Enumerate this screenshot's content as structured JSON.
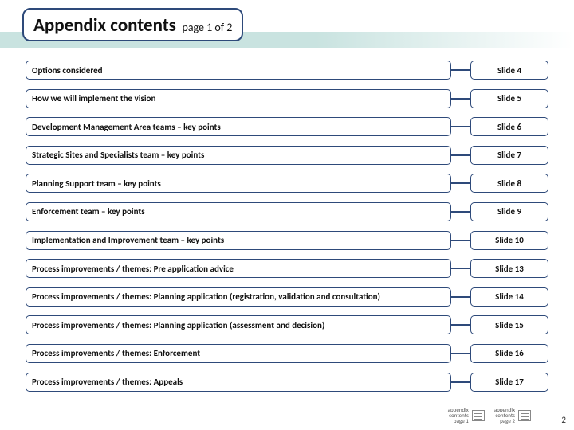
{
  "title": {
    "main": "Appendix contents",
    "sub": "page 1 of 2"
  },
  "rows": [
    {
      "label": "Options considered",
      "slide": "Slide 4"
    },
    {
      "label": "How we will implement the vision",
      "slide": "Slide 5"
    },
    {
      "label": "Development Management Area teams – key points",
      "slide": "Slide 6"
    },
    {
      "label": "Strategic Sites and Specialists team – key points",
      "slide": "Slide 7"
    },
    {
      "label": "Planning Support team – key points",
      "slide": "Slide 8"
    },
    {
      "label": "Enforcement team – key points",
      "slide": "Slide 9"
    },
    {
      "label": "Implementation and Improvement team – key points",
      "slide": "Slide 10"
    },
    {
      "label": "Process improvements / themes: Pre application advice",
      "slide": "Slide 13"
    },
    {
      "label": "Process improvements / themes: Planning application (registration, validation and consultation)",
      "slide": "Slide 14"
    },
    {
      "label": "Process improvements / themes: Planning application (assessment and decision)",
      "slide": "Slide 15"
    },
    {
      "label": "Process improvements / themes: Enforcement",
      "slide": "Slide 16"
    },
    {
      "label": "Process improvements / themes: Appeals",
      "slide": "Slide 17"
    }
  ],
  "footer": {
    "appendices": [
      {
        "line1": "appendix",
        "line2": "contents",
        "line3": "page 1"
      },
      {
        "line1": "appendix",
        "line2": "contents",
        "line3": "page 2"
      }
    ],
    "page_number": "2"
  },
  "colors": {
    "border": "#2e4a7a",
    "band": "#c9e3e0"
  }
}
